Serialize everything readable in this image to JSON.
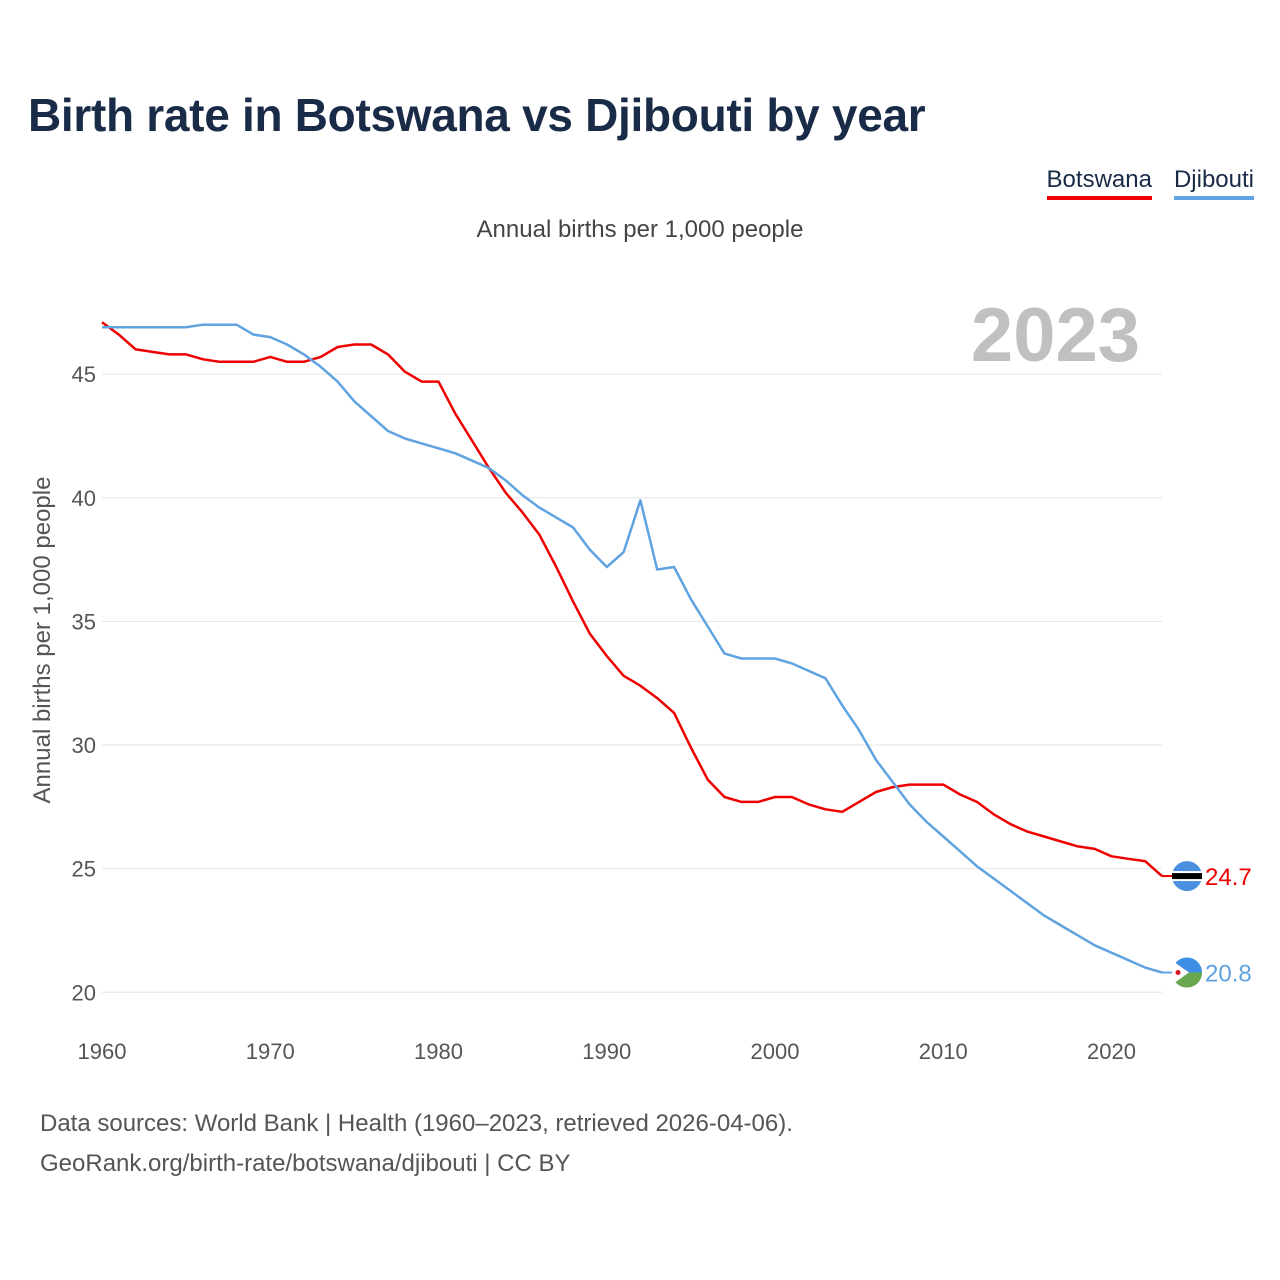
{
  "title": "Birth rate in Botswana vs Djibouti by year",
  "subtitle": "Annual births per 1,000 people",
  "legend": {
    "botswana": "Botswana",
    "djibouti": "Djibouti"
  },
  "footer": {
    "line1": "Data sources: World Bank | Health (1960–2023, retrieved 2026-04-06).",
    "line2": "GeoRank.org/birth-rate/botswana/djibouti | CC BY"
  },
  "colors": {
    "botswana": "#ee0000",
    "djibouti": "#5fa3e0",
    "grid": "#e6e6e6"
  },
  "chart_data": {
    "type": "line",
    "title": "Birth rate in Botswana vs Djibouti by year",
    "ylabel": "Annual births per 1,000 people",
    "xlabel": "",
    "year_label": "2023",
    "xlim": [
      1960,
      2023
    ],
    "ylim": [
      19,
      48
    ],
    "x_ticks": [
      1960,
      1970,
      1980,
      1990,
      2000,
      2010,
      2020
    ],
    "y_ticks": [
      20,
      25,
      30,
      35,
      40,
      45
    ],
    "x": [
      1960,
      1961,
      1962,
      1963,
      1964,
      1965,
      1966,
      1967,
      1968,
      1969,
      1970,
      1971,
      1972,
      1973,
      1974,
      1975,
      1976,
      1977,
      1978,
      1979,
      1980,
      1981,
      1982,
      1983,
      1984,
      1985,
      1986,
      1987,
      1988,
      1989,
      1990,
      1991,
      1992,
      1993,
      1994,
      1995,
      1996,
      1997,
      1998,
      1999,
      2000,
      2001,
      2002,
      2003,
      2004,
      2005,
      2006,
      2007,
      2008,
      2009,
      2010,
      2011,
      2012,
      2013,
      2014,
      2015,
      2016,
      2017,
      2018,
      2019,
      2020,
      2021,
      2022,
      2023
    ],
    "series": [
      {
        "name": "Botswana",
        "end_label": "24.7",
        "values": [
          47.1,
          46.6,
          46.0,
          45.9,
          45.8,
          45.8,
          45.6,
          45.5,
          45.5,
          45.5,
          45.7,
          45.5,
          45.5,
          45.7,
          46.1,
          46.2,
          46.2,
          45.8,
          45.1,
          44.7,
          44.7,
          43.4,
          42.3,
          41.2,
          40.2,
          39.4,
          38.5,
          37.2,
          35.8,
          34.5,
          33.6,
          32.8,
          32.4,
          31.9,
          31.3,
          29.9,
          28.6,
          27.9,
          27.7,
          27.7,
          27.9,
          27.9,
          27.6,
          27.4,
          27.3,
          27.7,
          28.1,
          28.3,
          28.4,
          28.4,
          28.4,
          28.0,
          27.7,
          27.2,
          26.8,
          26.5,
          26.3,
          26.1,
          25.9,
          25.8,
          25.5,
          25.4,
          25.3,
          24.7
        ]
      },
      {
        "name": "Djibouti",
        "end_label": "20.8",
        "values": [
          46.9,
          46.9,
          46.9,
          46.9,
          46.9,
          46.9,
          47.0,
          47.0,
          47.0,
          46.6,
          46.5,
          46.2,
          45.8,
          45.3,
          44.7,
          43.9,
          43.3,
          42.7,
          42.4,
          42.2,
          42.0,
          41.8,
          41.5,
          41.2,
          40.7,
          40.1,
          39.6,
          39.2,
          38.8,
          37.9,
          37.2,
          37.8,
          39.9,
          37.1,
          37.2,
          35.9,
          34.8,
          33.7,
          33.5,
          33.5,
          33.5,
          33.3,
          33.0,
          32.7,
          31.6,
          30.6,
          29.4,
          28.5,
          27.6,
          26.9,
          26.3,
          25.7,
          25.1,
          24.6,
          24.1,
          23.6,
          23.1,
          22.7,
          22.3,
          21.9,
          21.6,
          21.3,
          21.0,
          20.8
        ]
      }
    ]
  }
}
